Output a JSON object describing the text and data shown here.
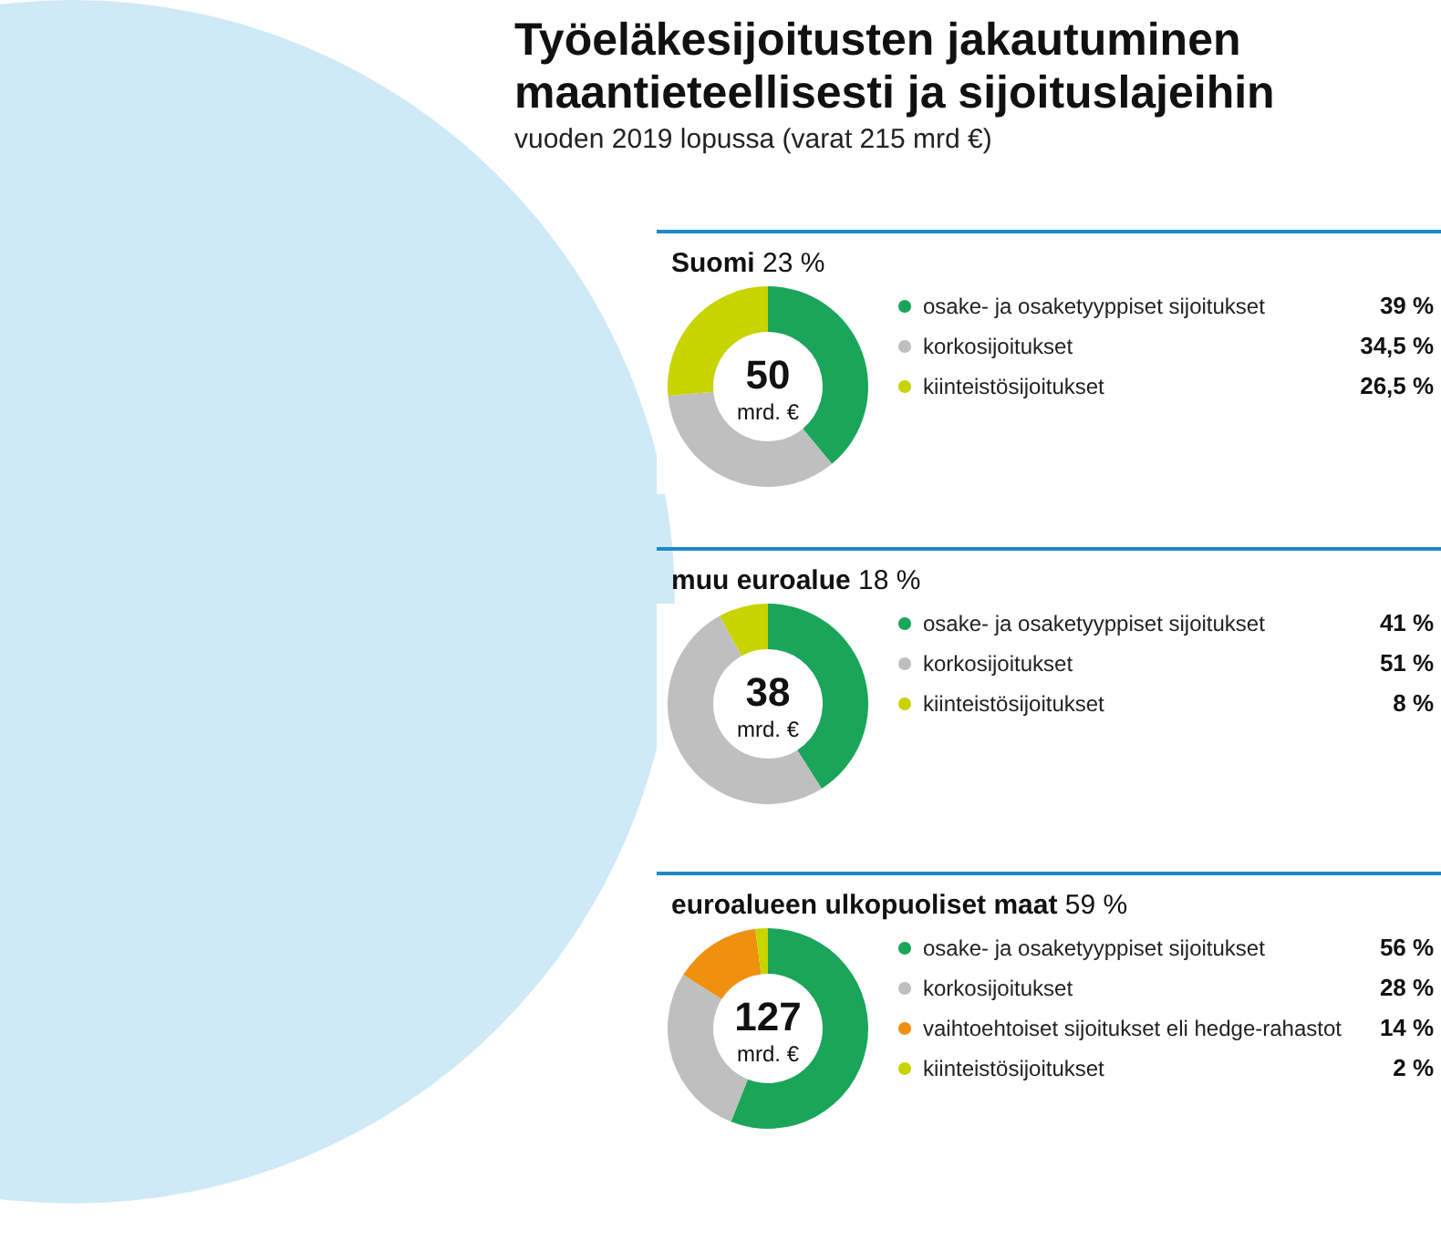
{
  "chart_data": [
    {
      "type": "other",
      "title": "Työeläkesijoitusten jakautuminen maantieteellisesti ja sijoituslajeihin",
      "subtitle": "vuoden 2019 lopussa (varat 215 mrd €)"
    },
    {
      "type": "donut",
      "title": "Suomi",
      "subtitle": "23 %",
      "annotations": [
        "50",
        "mrd. €"
      ],
      "legend": "right",
      "categories": [
        "osake- ja osaketyyppiset sijoitukset",
        "korkosijoitukset",
        "kiinteistösijoitukset"
      ],
      "values": [
        39,
        34.5,
        26.5
      ],
      "value_labels": [
        "39 %",
        "34,5 %",
        "26,5 %"
      ],
      "colors": [
        "#1aa55a",
        "#bfbfbf",
        "#c8d400"
      ]
    },
    {
      "type": "donut",
      "title": "muu euroalue",
      "subtitle": "18 %",
      "annotations": [
        "38",
        "mrd. €"
      ],
      "legend": "right",
      "categories": [
        "osake- ja osaketyyppiset sijoitukset",
        "korkosijoitukset",
        "kiinteistösijoitukset"
      ],
      "values": [
        41,
        51,
        8
      ],
      "value_labels": [
        "41 %",
        "51 %",
        "8 %"
      ],
      "colors": [
        "#1aa55a",
        "#bfbfbf",
        "#c8d400"
      ]
    },
    {
      "type": "donut",
      "title": "euroalueen ulkopuoliset maat",
      "subtitle": "59 %",
      "annotations": [
        "127",
        "mrd. €"
      ],
      "legend": "right",
      "categories": [
        "osake- ja osaketyyppiset sijoitukset",
        "korkosijoitukset",
        "vaihtoehtoiset sijoitukset eli hedge-rahastot",
        "kiinteistösijoitukset"
      ],
      "values": [
        56,
        28,
        14,
        2
      ],
      "value_labels": [
        "56 %",
        "28 %",
        "14 %",
        "2 %"
      ],
      "colors": [
        "#1aa55a",
        "#bfbfbf",
        "#f0900f",
        "#c8d400"
      ]
    }
  ]
}
